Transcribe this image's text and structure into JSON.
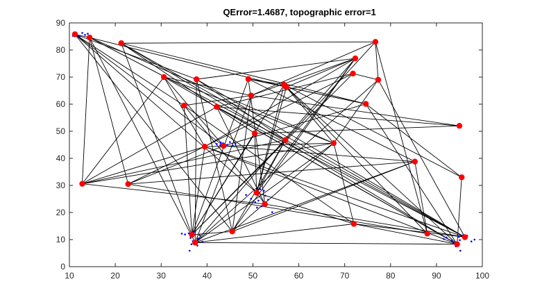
{
  "chart_data": {
    "type": "scatter",
    "title": "QError=1.4687, topographic error=1",
    "xlabel": "",
    "ylabel": "",
    "xlim": [
      10,
      100
    ],
    "ylim": [
      0,
      90
    ],
    "xticks": [
      10,
      20,
      30,
      40,
      50,
      60,
      70,
      80,
      90,
      100
    ],
    "yticks": [
      0,
      10,
      20,
      30,
      40,
      50,
      60,
      70,
      80,
      90
    ],
    "grid": false,
    "colors": {
      "nodes": "#ff0000",
      "samples": "#0000ff",
      "edges": "#000000"
    },
    "nodes": [
      {
        "x": 11.2,
        "y": 85.8
      },
      {
        "x": 14.4,
        "y": 84.6
      },
      {
        "x": 21.3,
        "y": 82.5
      },
      {
        "x": 12.8,
        "y": 30.6
      },
      {
        "x": 22.8,
        "y": 30.5
      },
      {
        "x": 30.6,
        "y": 70.0
      },
      {
        "x": 37.7,
        "y": 69.2
      },
      {
        "x": 35.0,
        "y": 59.5
      },
      {
        "x": 42.1,
        "y": 59.0
      },
      {
        "x": 49.0,
        "y": 69.3
      },
      {
        "x": 49.6,
        "y": 63.2
      },
      {
        "x": 56.8,
        "y": 67.2
      },
      {
        "x": 57.3,
        "y": 66.3
      },
      {
        "x": 71.8,
        "y": 71.3
      },
      {
        "x": 72.3,
        "y": 76.9
      },
      {
        "x": 76.7,
        "y": 83.0
      },
      {
        "x": 77.3,
        "y": 69.0
      },
      {
        "x": 74.6,
        "y": 60.1
      },
      {
        "x": 95.0,
        "y": 52.0
      },
      {
        "x": 95.5,
        "y": 33.0
      },
      {
        "x": 85.3,
        "y": 38.8
      },
      {
        "x": 67.6,
        "y": 45.6
      },
      {
        "x": 57.1,
        "y": 46.8
      },
      {
        "x": 50.4,
        "y": 49.2
      },
      {
        "x": 43.6,
        "y": 44.6
      },
      {
        "x": 39.5,
        "y": 44.3
      },
      {
        "x": 50.8,
        "y": 27.3
      },
      {
        "x": 52.6,
        "y": 23.1
      },
      {
        "x": 45.5,
        "y": 13.0
      },
      {
        "x": 36.7,
        "y": 11.8
      },
      {
        "x": 37.4,
        "y": 8.9
      },
      {
        "x": 72.0,
        "y": 15.8
      },
      {
        "x": 88.0,
        "y": 12.2
      },
      {
        "x": 94.5,
        "y": 8.3
      },
      {
        "x": 96.2,
        "y": 10.9
      }
    ],
    "edges": [
      [
        0,
        1
      ],
      [
        0,
        6
      ],
      [
        0,
        7
      ],
      [
        0,
        24
      ],
      [
        0,
        26
      ],
      [
        0,
        28
      ],
      [
        1,
        3
      ],
      [
        1,
        4
      ],
      [
        1,
        12
      ],
      [
        1,
        21
      ],
      [
        1,
        22
      ],
      [
        1,
        30
      ],
      [
        2,
        15
      ],
      [
        2,
        17
      ],
      [
        2,
        23
      ],
      [
        2,
        29
      ],
      [
        2,
        33
      ],
      [
        2,
        34
      ],
      [
        3,
        5
      ],
      [
        3,
        8
      ],
      [
        3,
        21
      ],
      [
        3,
        22
      ],
      [
        3,
        25
      ],
      [
        3,
        27
      ],
      [
        4,
        13
      ],
      [
        4,
        20
      ],
      [
        4,
        24
      ],
      [
        4,
        32
      ],
      [
        5,
        10
      ],
      [
        5,
        21
      ],
      [
        5,
        24
      ],
      [
        5,
        25
      ],
      [
        5,
        33
      ],
      [
        6,
        14
      ],
      [
        6,
        22
      ],
      [
        6,
        28
      ],
      [
        6,
        30
      ],
      [
        6,
        34
      ],
      [
        7,
        10
      ],
      [
        7,
        26
      ],
      [
        7,
        29
      ],
      [
        7,
        31
      ],
      [
        8,
        13
      ],
      [
        8,
        18
      ],
      [
        8,
        27
      ],
      [
        8,
        33
      ],
      [
        8,
        34
      ],
      [
        9,
        11
      ],
      [
        9,
        17
      ],
      [
        9,
        20
      ],
      [
        9,
        27
      ],
      [
        9,
        29
      ],
      [
        10,
        14
      ],
      [
        10,
        15
      ],
      [
        10,
        28
      ],
      [
        10,
        30
      ],
      [
        11,
        19
      ],
      [
        11,
        21
      ],
      [
        11,
        26
      ],
      [
        11,
        29
      ],
      [
        12,
        14
      ],
      [
        12,
        17
      ],
      [
        12,
        26
      ],
      [
        12,
        32
      ],
      [
        12,
        33
      ],
      [
        13,
        16
      ],
      [
        13,
        29
      ],
      [
        14,
        25
      ],
      [
        14,
        26
      ],
      [
        14,
        28
      ],
      [
        14,
        30
      ],
      [
        15,
        16
      ],
      [
        15,
        22
      ],
      [
        15,
        32
      ],
      [
        16,
        21
      ],
      [
        16,
        30
      ],
      [
        16,
        34
      ],
      [
        17,
        19
      ],
      [
        17,
        24
      ],
      [
        17,
        33
      ],
      [
        18,
        23
      ],
      [
        18,
        10
      ],
      [
        19,
        33
      ],
      [
        20,
        24
      ],
      [
        20,
        30
      ],
      [
        20,
        32
      ],
      [
        20,
        28
      ],
      [
        21,
        28
      ],
      [
        21,
        31
      ],
      [
        21,
        25
      ],
      [
        21,
        30
      ],
      [
        22,
        26
      ],
      [
        22,
        29
      ],
      [
        22,
        34
      ],
      [
        23,
        29
      ],
      [
        23,
        26
      ],
      [
        25,
        29
      ],
      [
        25,
        33
      ],
      [
        25,
        34
      ],
      [
        26,
        27
      ],
      [
        26,
        31
      ],
      [
        27,
        34
      ],
      [
        28,
        29
      ],
      [
        28,
        22
      ],
      [
        30,
        31
      ],
      [
        30,
        33
      ],
      [
        31,
        34
      ],
      [
        31,
        33
      ]
    ],
    "samples": [
      [
        10.8,
        85.2
      ],
      [
        11.6,
        86.1
      ],
      [
        12.2,
        85.0
      ],
      [
        12.8,
        86.3
      ],
      [
        13.4,
        85.6
      ],
      [
        14.0,
        86.0
      ],
      [
        36.0,
        12.3
      ],
      [
        36.4,
        10.6
      ],
      [
        36.9,
        9.4
      ],
      [
        36.2,
        5.9
      ],
      [
        37.4,
        12.9
      ],
      [
        35.2,
        11.9
      ],
      [
        34.5,
        12.2
      ],
      [
        38.4,
        11.6
      ],
      [
        38.0,
        10.4
      ],
      [
        36.6,
        8.3
      ],
      [
        39.0,
        9.2
      ],
      [
        37.9,
        7.8
      ],
      [
        42.1,
        45.3
      ],
      [
        42.9,
        44.9
      ],
      [
        43.5,
        45.6
      ],
      [
        44.4,
        45.0
      ],
      [
        45.0,
        46.0
      ],
      [
        45.6,
        44.7
      ],
      [
        46.2,
        45.4
      ],
      [
        43.0,
        45.9
      ],
      [
        48.5,
        26.5
      ],
      [
        49.6,
        25.1
      ],
      [
        50.5,
        23.8
      ],
      [
        51.6,
        28.6
      ],
      [
        52.4,
        28.0
      ],
      [
        52.7,
        26.2
      ],
      [
        53.3,
        24.7
      ],
      [
        51.9,
        22.3
      ],
      [
        54.2,
        20.1
      ],
      [
        50.9,
        21.8
      ],
      [
        52.8,
        22.7
      ],
      [
        51.2,
        24.4
      ],
      [
        91.6,
        10.2
      ],
      [
        92.2,
        10.8
      ],
      [
        93.3,
        9.6
      ],
      [
        93.8,
        8.6
      ],
      [
        94.2,
        7.5
      ],
      [
        95.2,
        5.9
      ],
      [
        95.1,
        9.8
      ],
      [
        96.7,
        11.4
      ],
      [
        97.6,
        9.3
      ],
      [
        98.3,
        10.0
      ],
      [
        95.8,
        11.6
      ],
      [
        94.9,
        11.0
      ]
    ]
  }
}
